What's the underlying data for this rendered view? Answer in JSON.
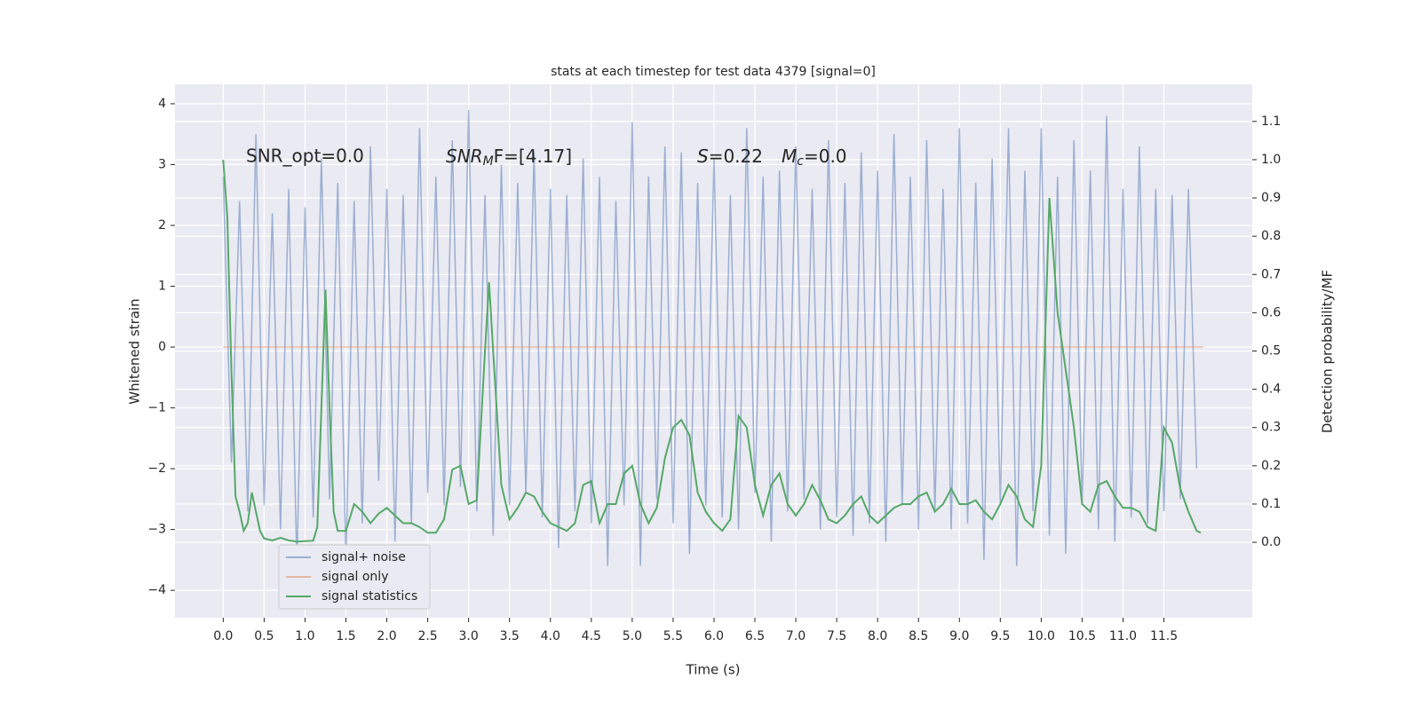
{
  "chart_data": {
    "type": "line",
    "title": "stats at each timestep for test data 4379 [signal=0]",
    "xlabel": "Time (s)",
    "ylabel": "Whitened strain",
    "y2label": "Detection probability/MF",
    "annotations": {
      "snr_opt": "SNR_opt=0.0",
      "snr_mf": {
        "symbol": "SNR",
        "subscript": "M",
        "rest": "F=[4.17]"
      },
      "s": {
        "symbol": "S",
        "rest": "=0.22"
      },
      "mc": {
        "symbol": "M",
        "subscript": "c",
        "rest": "=0.0"
      }
    },
    "legend": "lower left",
    "grid": true,
    "xlim": [
      -0.59,
      12.58
    ],
    "ylim": [
      -4.45,
      4.32
    ],
    "y2lim": [
      -0.197,
      1.197
    ],
    "xticks": [
      {
        "value": 0,
        "label": "0.0"
      },
      {
        "value": 0.5,
        "label": "0.5"
      },
      {
        "value": 1,
        "label": "1.0"
      },
      {
        "value": 1.5,
        "label": "1.5"
      },
      {
        "value": 2,
        "label": "2.0"
      },
      {
        "value": 2.5,
        "label": "2.5"
      },
      {
        "value": 3,
        "label": "3.0"
      },
      {
        "value": 3.5,
        "label": "3.5"
      },
      {
        "value": 4,
        "label": "4.0"
      },
      {
        "value": 4.5,
        "label": "4.5"
      },
      {
        "value": 5,
        "label": "5.0"
      },
      {
        "value": 5.5,
        "label": "5.5"
      },
      {
        "value": 6,
        "label": "6.0"
      },
      {
        "value": 6.5,
        "label": "6.5"
      },
      {
        "value": 7,
        "label": "7.0"
      },
      {
        "value": 7.5,
        "label": "7.5"
      },
      {
        "value": 8,
        "label": "8.0"
      },
      {
        "value": 8.5,
        "label": "8.5"
      },
      {
        "value": 9,
        "label": "9.0"
      },
      {
        "value": 9.5,
        "label": "9.5"
      },
      {
        "value": 10,
        "label": "10.0"
      },
      {
        "value": 10.5,
        "label": "10.5"
      },
      {
        "value": 11,
        "label": "11.0"
      },
      {
        "value": 11.5,
        "label": "11.5"
      }
    ],
    "yticks": [
      {
        "value": -4,
        "label": "−4"
      },
      {
        "value": -3,
        "label": "−3"
      },
      {
        "value": -2,
        "label": "−2"
      },
      {
        "value": -1,
        "label": "−1"
      },
      0,
      1,
      2,
      3,
      4
    ],
    "y2ticks": [
      {
        "value": 0,
        "label": "0.0"
      },
      {
        "value": 0.1,
        "label": "0.1"
      },
      {
        "value": 0.2,
        "label": "0.2"
      },
      {
        "value": 0.3,
        "label": "0.3"
      },
      {
        "value": 0.4,
        "label": "0.4"
      },
      {
        "value": 0.5,
        "label": "0.5"
      },
      {
        "value": 0.6,
        "label": "0.6"
      },
      {
        "value": 0.7,
        "label": "0.7"
      },
      {
        "value": 0.8,
        "label": "0.8"
      },
      {
        "value": 0.9,
        "label": "0.9"
      },
      {
        "value": 1,
        "label": "1.0"
      },
      {
        "value": 1.1,
        "label": "1.1"
      }
    ],
    "series": [
      {
        "name": "signal+ noise",
        "color": "#4c72b0",
        "x": [
          0.0,
          0.1,
          0.2,
          0.3,
          0.4,
          0.5,
          0.6,
          0.7,
          0.8,
          0.9,
          1.0,
          1.1,
          1.2,
          1.3,
          1.4,
          1.5,
          1.6,
          1.7,
          1.8,
          1.9,
          2.0,
          2.1,
          2.2,
          2.3,
          2.4,
          2.5,
          2.6,
          2.7,
          2.8,
          2.9,
          3.0,
          3.1,
          3.2,
          3.3,
          3.4,
          3.5,
          3.6,
          3.7,
          3.8,
          3.9,
          4.0,
          4.1,
          4.2,
          4.3,
          4.4,
          4.5,
          4.6,
          4.7,
          4.8,
          4.9,
          5.0,
          5.1,
          5.2,
          5.3,
          5.4,
          5.5,
          5.6,
          5.7,
          5.8,
          5.9,
          6.0,
          6.1,
          6.2,
          6.3,
          6.4,
          6.5,
          6.6,
          6.7,
          6.8,
          6.9,
          7.0,
          7.1,
          7.2,
          7.3,
          7.4,
          7.5,
          7.6,
          7.7,
          7.8,
          7.9,
          8.0,
          8.1,
          8.2,
          8.3,
          8.4,
          8.5,
          8.6,
          8.7,
          8.8,
          8.9,
          9.0,
          9.1,
          9.2,
          9.3,
          9.4,
          9.5,
          9.6,
          9.7,
          9.8,
          9.9,
          10.0,
          10.1,
          10.2,
          10.3,
          10.4,
          10.5,
          10.6,
          10.7,
          10.8,
          10.9,
          11.0,
          11.1,
          11.2,
          11.3,
          11.4,
          11.5,
          11.6,
          11.7,
          11.8,
          11.9
        ],
        "values": [
          2.8,
          -1.9,
          2.4,
          -2.7,
          3.5,
          -2.6,
          2.2,
          -3.0,
          2.6,
          -3.6,
          2.3,
          -2.8,
          3.1,
          -2.5,
          2.7,
          -3.5,
          2.4,
          -2.9,
          3.3,
          -2.2,
          2.6,
          -3.2,
          2.5,
          -2.9,
          3.6,
          -2.4,
          2.8,
          -2.6,
          3.4,
          -2.3,
          3.9,
          -2.7,
          2.5,
          -3.1,
          3.0,
          -2.6,
          2.7,
          -2.4,
          3.2,
          -2.8,
          2.6,
          -3.3,
          2.5,
          -2.7,
          3.1,
          -2.9,
          2.8,
          -3.6,
          2.4,
          -2.6,
          3.7,
          -3.6,
          2.8,
          -2.5,
          3.3,
          -2.9,
          3.2,
          -3.4,
          2.7,
          -2.6,
          3.1,
          -2.8,
          2.5,
          -3.0,
          3.6,
          -2.4,
          2.8,
          -3.2,
          2.9,
          -2.7,
          3.3,
          -2.5,
          2.6,
          -3.0,
          3.4,
          -2.8,
          2.7,
          -3.1,
          3.2,
          -2.9,
          2.9,
          -3.2,
          3.5,
          -2.6,
          2.8,
          -3.0,
          3.4,
          -2.7,
          2.6,
          -3.0,
          3.6,
          -2.9,
          2.7,
          -3.5,
          3.1,
          -2.6,
          3.6,
          -3.6,
          2.9,
          -2.7,
          3.6,
          -3.1,
          2.8,
          -3.4,
          3.4,
          -2.6,
          2.9,
          -3.0,
          3.8,
          -3.2,
          2.6,
          -2.8,
          3.3,
          -2.9,
          2.6,
          -2.7,
          2.5,
          -2.5,
          2.6,
          -2.0
        ]
      },
      {
        "name": "signal only",
        "color": "#dd8452",
        "x": [
          0.0,
          11.98
        ],
        "values": [
          0,
          0
        ]
      },
      {
        "name": "signal statistics",
        "color": "#55a868",
        "axis": "y2",
        "x": [
          0.0,
          0.05,
          0.1,
          0.15,
          0.2,
          0.25,
          0.3,
          0.35,
          0.4,
          0.45,
          0.5,
          0.6,
          0.7,
          0.8,
          0.9,
          1.0,
          1.1,
          1.15,
          1.2,
          1.25,
          1.3,
          1.35,
          1.4,
          1.5,
          1.6,
          1.7,
          1.8,
          1.9,
          2.0,
          2.1,
          2.2,
          2.3,
          2.4,
          2.5,
          2.6,
          2.7,
          2.8,
          2.9,
          3.0,
          3.1,
          3.2,
          3.25,
          3.3,
          3.4,
          3.5,
          3.6,
          3.7,
          3.8,
          3.9,
          4.0,
          4.1,
          4.2,
          4.3,
          4.4,
          4.5,
          4.6,
          4.7,
          4.8,
          4.9,
          5.0,
          5.1,
          5.2,
          5.3,
          5.4,
          5.5,
          5.6,
          5.7,
          5.8,
          5.9,
          6.0,
          6.1,
          6.2,
          6.3,
          6.4,
          6.5,
          6.6,
          6.7,
          6.8,
          6.9,
          7.0,
          7.1,
          7.2,
          7.3,
          7.4,
          7.5,
          7.6,
          7.7,
          7.8,
          7.9,
          8.0,
          8.1,
          8.2,
          8.3,
          8.4,
          8.5,
          8.6,
          8.7,
          8.8,
          8.9,
          9.0,
          9.1,
          9.2,
          9.3,
          9.4,
          9.5,
          9.6,
          9.7,
          9.8,
          9.9,
          10.0,
          10.1,
          10.2,
          10.3,
          10.4,
          10.5,
          10.6,
          10.7,
          10.8,
          10.9,
          11.0,
          11.1,
          11.2,
          11.3,
          11.4,
          11.45,
          11.5,
          11.6,
          11.7,
          11.8,
          11.9,
          11.95
        ],
        "values": [
          1.0,
          0.85,
          0.45,
          0.12,
          0.08,
          0.03,
          0.05,
          0.13,
          0.08,
          0.03,
          0.01,
          0.005,
          0.012,
          0.005,
          0.002,
          0.003,
          0.004,
          0.04,
          0.35,
          0.66,
          0.35,
          0.08,
          0.03,
          0.03,
          0.1,
          0.08,
          0.05,
          0.075,
          0.09,
          0.07,
          0.05,
          0.05,
          0.04,
          0.025,
          0.025,
          0.06,
          0.19,
          0.2,
          0.1,
          0.11,
          0.5,
          0.68,
          0.5,
          0.15,
          0.06,
          0.09,
          0.13,
          0.12,
          0.08,
          0.05,
          0.04,
          0.03,
          0.05,
          0.15,
          0.16,
          0.05,
          0.1,
          0.1,
          0.18,
          0.2,
          0.1,
          0.05,
          0.09,
          0.22,
          0.3,
          0.32,
          0.28,
          0.13,
          0.08,
          0.05,
          0.03,
          0.06,
          0.33,
          0.3,
          0.15,
          0.07,
          0.15,
          0.18,
          0.1,
          0.07,
          0.1,
          0.15,
          0.11,
          0.06,
          0.05,
          0.07,
          0.1,
          0.12,
          0.07,
          0.05,
          0.07,
          0.09,
          0.1,
          0.1,
          0.12,
          0.13,
          0.08,
          0.1,
          0.14,
          0.1,
          0.1,
          0.11,
          0.08,
          0.06,
          0.1,
          0.15,
          0.12,
          0.06,
          0.04,
          0.2,
          0.9,
          0.6,
          0.45,
          0.3,
          0.1,
          0.08,
          0.15,
          0.16,
          0.12,
          0.09,
          0.09,
          0.08,
          0.04,
          0.03,
          0.15,
          0.3,
          0.26,
          0.14,
          0.08,
          0.03,
          0.025
        ]
      }
    ]
  }
}
